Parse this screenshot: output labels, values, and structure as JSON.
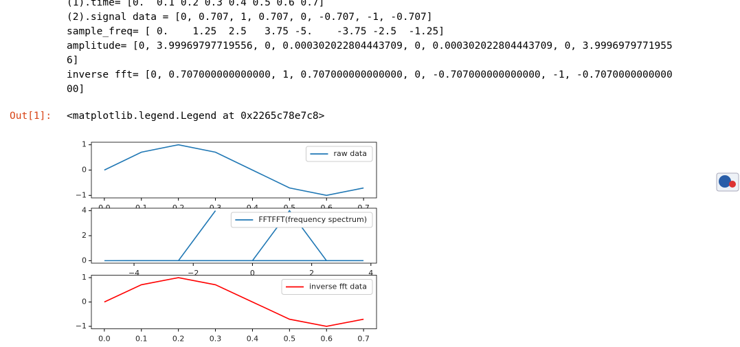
{
  "output_lines": [
    "(1).time= [0.  0.1 0.2 0.3 0.4 0.5 0.6 0.7]",
    "(2).signal data = [0, 0.707, 1, 0.707, 0, -0.707, -1, -0.707]",
    "sample_freq= [ 0.    1.25  2.5   3.75 -5.    -3.75 -2.5  -1.25]",
    "amplitude= [0, 3.99969797719556, 0, 0.000302022804443709, 0, 0.000302022804443709, 0, 3.9996979771955",
    "6]",
    "inverse fft= [0, 0.707000000000000, 1, 0.707000000000000, 0, -0.707000000000000, -1, -0.7070000000000",
    "00]"
  ],
  "out_prompt": "Out[1]:",
  "out_text": "<matplotlib.legend.Legend at 0x2265c78e7c8>",
  "chart_data": [
    {
      "type": "line",
      "x": [
        0,
        0.1,
        0.2,
        0.3,
        0.4,
        0.5,
        0.6,
        0.7
      ],
      "series": [
        {
          "name": "raw data",
          "color": "#1f77b4",
          "values": [
            0,
            0.707,
            1,
            0.707,
            0,
            -0.707,
            -1,
            -0.707
          ]
        }
      ],
      "xlim": [
        -0.035,
        0.735
      ],
      "ylim": [
        -1.1,
        1.1
      ],
      "xticks": [
        {
          "value": 0,
          "label": "0.0"
        },
        0.1,
        0.2,
        0.3,
        0.4,
        0.5,
        0.6,
        0.7
      ],
      "yticks": [
        {
          "value": -1,
          "label": "−1"
        },
        0,
        1
      ],
      "legend": "upper right"
    },
    {
      "type": "line",
      "x": [
        0,
        1.25,
        2.5,
        3.75,
        -5,
        -3.75,
        -2.5,
        -1.25
      ],
      "series": [
        {
          "name": "FFTFFT(frequency spectrum)",
          "color": "#1f77b4",
          "values": [
            0,
            3.99969797719556,
            0,
            0.000302022804443709,
            0,
            0.000302022804443709,
            0,
            3.99969797719556
          ]
        }
      ],
      "xlim": [
        -5.44,
        4.19
      ],
      "ylim": [
        -0.2,
        4.2
      ],
      "xticks": [
        {
          "value": -4,
          "label": "−4"
        },
        {
          "value": -2,
          "label": "−2"
        },
        0,
        2,
        4
      ],
      "yticks": [
        0,
        2,
        4
      ],
      "legend": "upper right"
    },
    {
      "type": "line",
      "x": [
        0,
        0.1,
        0.2,
        0.3,
        0.4,
        0.5,
        0.6,
        0.7
      ],
      "series": [
        {
          "name": "inverse fft data",
          "color": "#ff0000",
          "values": [
            0,
            0.707,
            1,
            0.707,
            0,
            -0.707,
            -1,
            -0.707
          ]
        }
      ],
      "xlim": [
        -0.035,
        0.735
      ],
      "ylim": [
        -1.1,
        1.1
      ],
      "xticks": [
        {
          "value": 0,
          "label": "0.0"
        },
        0.1,
        0.2,
        0.3,
        0.4,
        0.5,
        0.6,
        0.7
      ],
      "yticks": [
        {
          "value": -1,
          "label": "−1"
        },
        0,
        1
      ],
      "legend": "upper right"
    }
  ]
}
